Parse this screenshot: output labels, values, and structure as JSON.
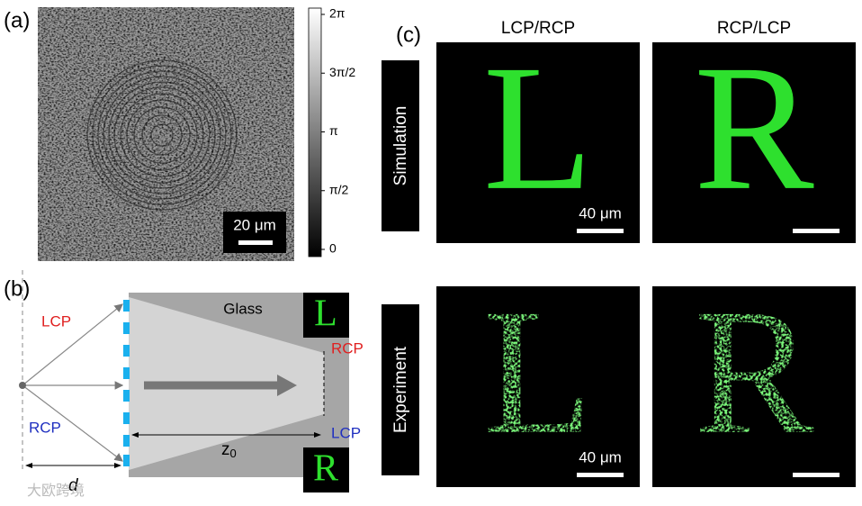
{
  "panel_a": {
    "label": "(a)",
    "scale_bar": "20 μm",
    "colorbar_ticks": [
      "2π",
      "3π/2",
      "π",
      "π/2",
      "0"
    ]
  },
  "panel_b": {
    "label": "(b)",
    "glass": "Glass",
    "input_top": "LCP",
    "input_bottom": "RCP",
    "output_top": "RCP",
    "output_bottom": "LCP",
    "focus_top": "L",
    "focus_bottom": "R",
    "distance_z": "z",
    "distance_z_sub": "0",
    "distance_d": "d"
  },
  "panel_c": {
    "label": "(c)",
    "columns": [
      "LCP/RCP",
      "RCP/LCP"
    ],
    "rows": [
      "Simulation",
      "Experiment"
    ],
    "letters": [
      "L",
      "R"
    ],
    "scale_bars": [
      "40 μm",
      "40 μm"
    ]
  },
  "watermark": "大欧跨境"
}
